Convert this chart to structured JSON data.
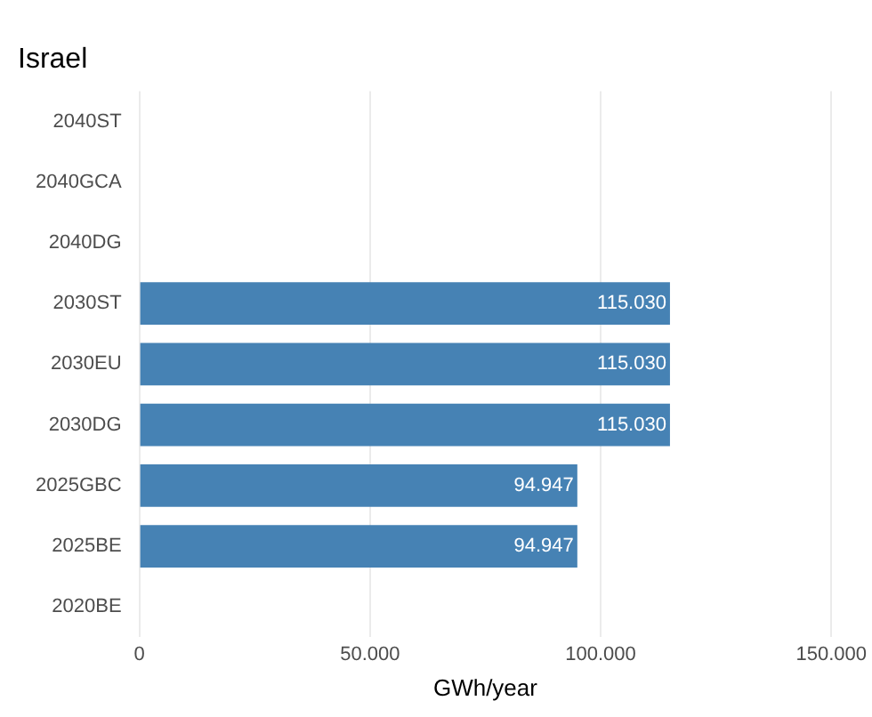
{
  "chart_data": {
    "type": "bar",
    "orientation": "horizontal",
    "title": "Israel",
    "xlabel": "GWh/year",
    "categories": [
      "2040ST",
      "2040GCA",
      "2040DG",
      "2030ST",
      "2030EU",
      "2030DG",
      "2025GBC",
      "2025BE",
      "2020BE"
    ],
    "values": [
      null,
      null,
      null,
      115030,
      115030,
      115030,
      94947,
      94947,
      null
    ],
    "value_labels": [
      null,
      null,
      null,
      "115.030",
      "115.030",
      "115.030",
      "94.947",
      "94.947",
      null
    ],
    "color": "#4682b4",
    "xlim": [
      0,
      150000
    ],
    "xticks": [
      {
        "value": 0,
        "label": "0"
      },
      {
        "value": 50000,
        "label": "50.000"
      },
      {
        "value": 100000,
        "label": "100.000"
      },
      {
        "value": 150000,
        "label": "150.000"
      }
    ],
    "grid": "x",
    "legend": false
  }
}
